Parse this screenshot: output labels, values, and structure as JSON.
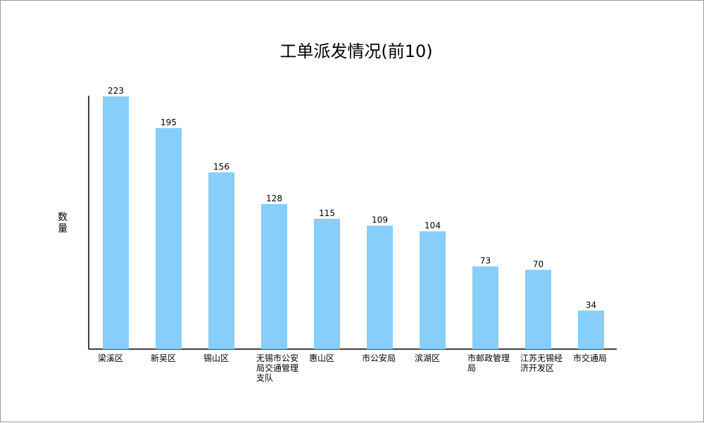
{
  "chart_data": {
    "type": "bar",
    "title": "工单派发情况(前10)",
    "ylabel": "数量",
    "xlabel": "",
    "categories": [
      "梁溪区",
      "新吴区",
      "锡山区",
      "无锡市公安局交通管理支队",
      "惠山区",
      "市公安局",
      "滨湖区",
      "市邮政管理局",
      "江苏无锡经济开发区",
      "市交通局"
    ],
    "values": [
      223,
      195,
      156,
      128,
      115,
      109,
      104,
      73,
      70,
      34
    ],
    "ylim": [
      0,
      230
    ],
    "grid": false,
    "legend": "none",
    "colors": {
      "bar": "#87cefa",
      "axis": "#000000"
    }
  }
}
